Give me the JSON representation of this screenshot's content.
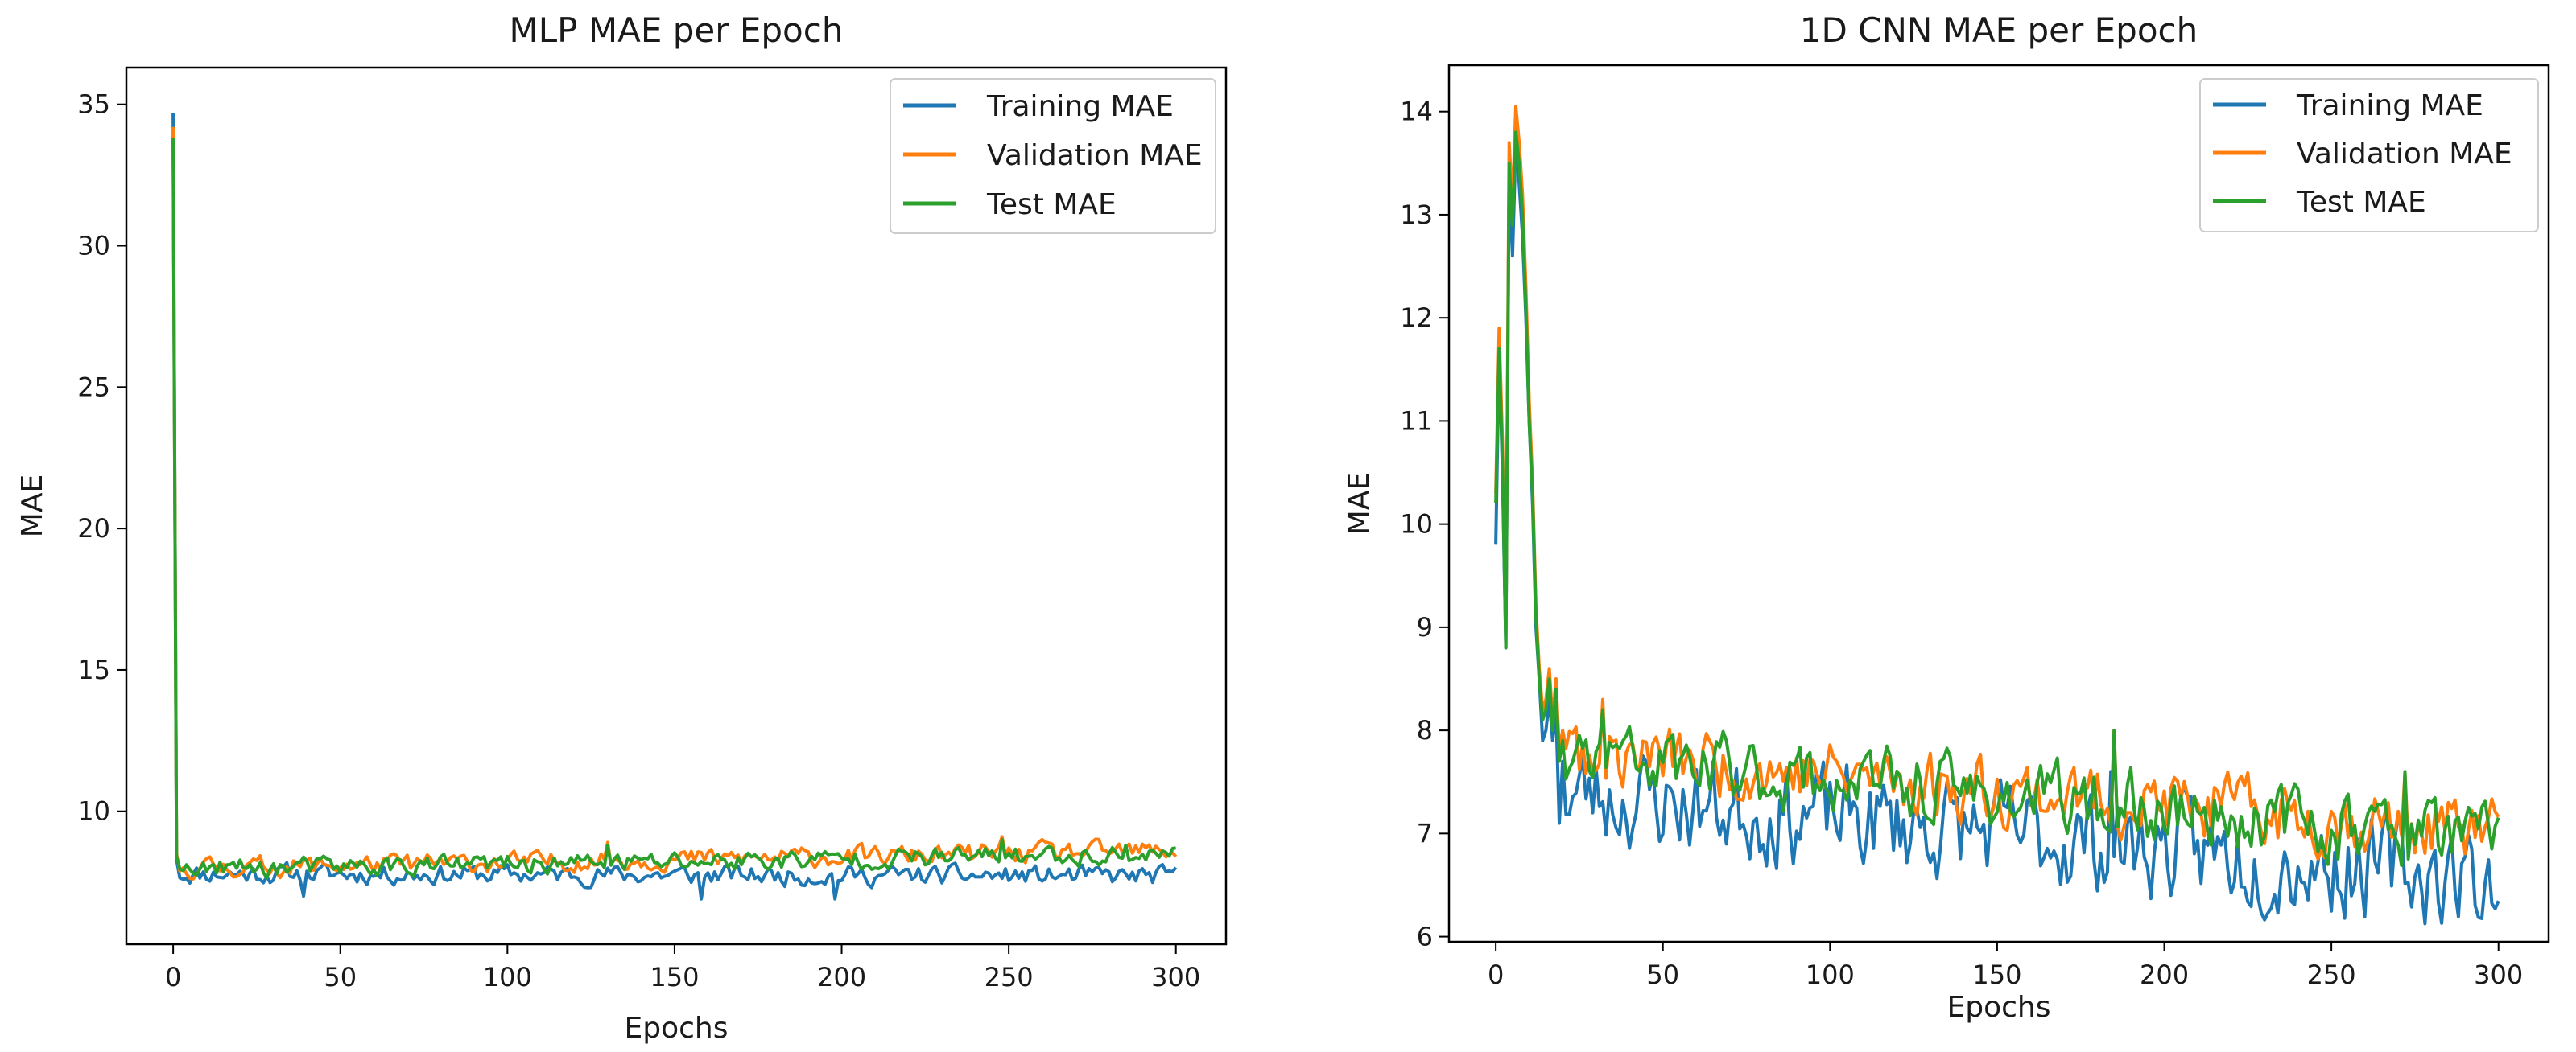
{
  "chart_data": [
    {
      "type": "line",
      "title": "MLP MAE per Epoch",
      "xlabel": "Epochs",
      "ylabel": "MAE",
      "xlim": [
        -14,
        315
      ],
      "ylim": [
        5.3,
        36.3
      ],
      "xticks": [
        0,
        50,
        100,
        150,
        200,
        250,
        300
      ],
      "yticks": [
        10,
        15,
        20,
        25,
        30,
        35
      ],
      "grid": false,
      "legend_position": "top-right",
      "epochs": 301,
      "seed": 11,
      "series": [
        {
          "name": "Training MAE",
          "color": "#1f77b4",
          "start": 34.7,
          "second": 8.3,
          "base_start": 7.8,
          "base_end": 7.7,
          "noise": 0.3,
          "spikes": [
            [
              39,
              7.0
            ],
            [
              158,
              6.9
            ],
            [
              198,
              6.9
            ]
          ]
        },
        {
          "name": "Validation MAE",
          "color": "#ff7f0e",
          "start": 34.2,
          "second": 8.5,
          "base_start": 8.0,
          "base_end": 8.6,
          "noise": 0.3,
          "spikes": [
            [
              130,
              8.9
            ],
            [
              248,
              9.1
            ],
            [
              260,
              9.0
            ]
          ]
        },
        {
          "name": "Test MAE",
          "color": "#2ca02c",
          "start": 33.8,
          "second": 8.4,
          "base_start": 7.95,
          "base_end": 8.5,
          "noise": 0.3,
          "spikes": [
            [
              130,
              8.8
            ],
            [
              248,
              9.0
            ],
            [
              285,
              8.8
            ]
          ]
        }
      ]
    },
    {
      "type": "line",
      "title": "1D CNN MAE per Epoch",
      "xlabel": "Epochs",
      "ylabel": "MAE",
      "xlim": [
        -14,
        315
      ],
      "ylim": [
        5.95,
        14.45
      ],
      "xticks": [
        0,
        50,
        100,
        150,
        200,
        250,
        300
      ],
      "yticks": [
        6,
        7,
        8,
        9,
        10,
        11,
        12,
        13,
        14
      ],
      "grid": false,
      "legend_position": "top-right",
      "epochs": 301,
      "seed": 23,
      "series": [
        {
          "name": "Training MAE",
          "color": "#1f77b4",
          "early": [
            9.8,
            11.7,
            10.5,
            8.8,
            13.4,
            12.6,
            13.7,
            13.3,
            12.8,
            12.0,
            11.0,
            10.2,
            9.0,
            8.5,
            7.9,
            8.0,
            8.3,
            7.9,
            8.2,
            7.1,
            7.7
          ],
          "base_start": 7.4,
          "base_end": 6.55,
          "noise": 0.42,
          "spikes": [
            [
              184,
              7.6
            ],
            [
              270,
              7.2
            ]
          ]
        },
        {
          "name": "Validation MAE",
          "color": "#ff7f0e",
          "early": [
            10.3,
            11.9,
            10.8,
            8.9,
            13.7,
            13.1,
            14.05,
            13.7,
            13.2,
            12.3,
            11.2,
            10.4,
            9.2,
            8.6,
            8.2,
            8.3,
            8.6,
            8.1,
            8.5,
            7.8,
            8.0
          ],
          "base_start": 7.8,
          "base_end": 7.0,
          "noise": 0.28,
          "spikes": [
            [
              32,
              8.3
            ],
            [
              185,
              8.0
            ],
            [
              272,
              7.6
            ]
          ]
        },
        {
          "name": "Test MAE",
          "color": "#2ca02c",
          "early": [
            10.2,
            11.7,
            10.6,
            8.8,
            13.5,
            12.9,
            13.8,
            13.5,
            13.0,
            12.1,
            11.0,
            10.3,
            9.1,
            8.5,
            8.1,
            8.2,
            8.5,
            8.0,
            8.4,
            7.7,
            7.9
          ],
          "base_start": 7.75,
          "base_end": 6.95,
          "noise": 0.28,
          "spikes": [
            [
              32,
              8.2
            ],
            [
              185,
              8.0
            ],
            [
              272,
              7.6
            ]
          ]
        }
      ]
    }
  ]
}
